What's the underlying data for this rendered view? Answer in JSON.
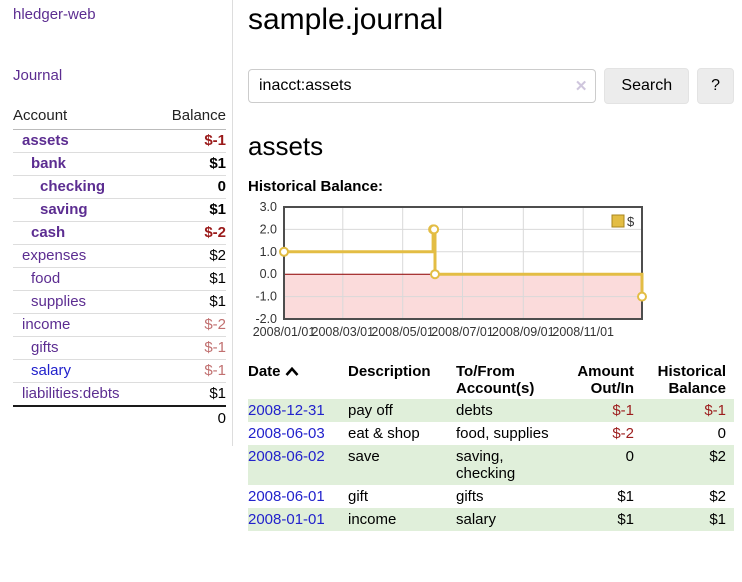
{
  "app": {
    "brand": "hledger-web",
    "nav_journal": "Journal"
  },
  "sidebar": {
    "header": {
      "account": "Account",
      "balance": "Balance"
    },
    "accounts": [
      {
        "name": "assets",
        "level": 1,
        "bold": true,
        "balance": "$-1"
      },
      {
        "name": "bank",
        "level": 2,
        "bold": true,
        "balance": "$1"
      },
      {
        "name": "checking",
        "level": 3,
        "bold": true,
        "balance": "0"
      },
      {
        "name": "saving",
        "level": 3,
        "bold": true,
        "balance": "$1"
      },
      {
        "name": "cash",
        "level": 2,
        "bold": true,
        "balance": "$-2"
      },
      {
        "name": "expenses",
        "level": 1,
        "bold": false,
        "balance": "$2"
      },
      {
        "name": "food",
        "level": 2,
        "bold": false,
        "balance": "$1"
      },
      {
        "name": "supplies",
        "level": 2,
        "bold": false,
        "balance": "$1"
      },
      {
        "name": "income",
        "level": 1,
        "bold": false,
        "balance": "$-2"
      },
      {
        "name": "gifts",
        "level": 2,
        "bold": false,
        "balance": "$-1"
      },
      {
        "name": "salary",
        "level": 2,
        "bold": false,
        "balance": "$-1",
        "blue": true
      },
      {
        "name": "liabilities:debts",
        "level": 1,
        "bold": false,
        "balance": "$1"
      }
    ],
    "total": "0"
  },
  "main": {
    "title": "sample.journal",
    "search": {
      "value": "inacct:assets",
      "clear_icon": "✕",
      "button_label": "Search",
      "help_label": "?"
    },
    "account_heading": "assets",
    "chart_label": "Historical Balance:"
  },
  "chart_data": {
    "type": "line",
    "step": true,
    "title": "Historical Balance:",
    "x_domain": [
      "2008-01-01",
      "2008-12-31"
    ],
    "ylim": [
      -2,
      3
    ],
    "y_ticks": [
      "3.0",
      "2.0",
      "1.0",
      "0.0",
      "-1.0",
      "-2.0"
    ],
    "x_ticks": [
      "2008/01/01",
      "2008/03/01",
      "2008/05/01",
      "2008/07/01",
      "2008/09/01",
      "2008/11/01"
    ],
    "series": [
      {
        "name": "$",
        "color": "#e3bd44",
        "points": [
          [
            "2008-01-01",
            1
          ],
          [
            "2008-06-01",
            2
          ],
          [
            "2008-06-02",
            2
          ],
          [
            "2008-06-03",
            0
          ],
          [
            "2008-12-31",
            -1
          ]
        ]
      }
    ],
    "legend": {
      "label": "$",
      "position": "top-right"
    },
    "colors": {
      "negative_region": "#fbdbdb",
      "zero_line": "#8c0000",
      "grid": "#d9d9d9",
      "frame": "#4d4d4d",
      "tick_text": "#333333",
      "legend_border": "#a8861e"
    }
  },
  "register": {
    "headers": {
      "date": "Date",
      "description": "Description",
      "accounts": "To/From Account(s)",
      "amount": "Amount Out/In",
      "balance": "Historical Balance"
    },
    "rows": [
      {
        "date": "2008-12-31",
        "description": "pay off",
        "accounts": "debts",
        "amount": "$-1",
        "balance": "$-1"
      },
      {
        "date": "2008-06-03",
        "description": "eat & shop",
        "accounts": "food, supplies",
        "amount": "$-2",
        "balance": "0"
      },
      {
        "date": "2008-06-02",
        "description": "save",
        "accounts": "saving, checking",
        "amount": "0",
        "balance": "$2"
      },
      {
        "date": "2008-06-01",
        "description": "gift",
        "accounts": "gifts",
        "amount": "$1",
        "balance": "$2"
      },
      {
        "date": "2008-01-01",
        "description": "income",
        "accounts": "salary",
        "amount": "$1",
        "balance": "$1"
      }
    ]
  }
}
